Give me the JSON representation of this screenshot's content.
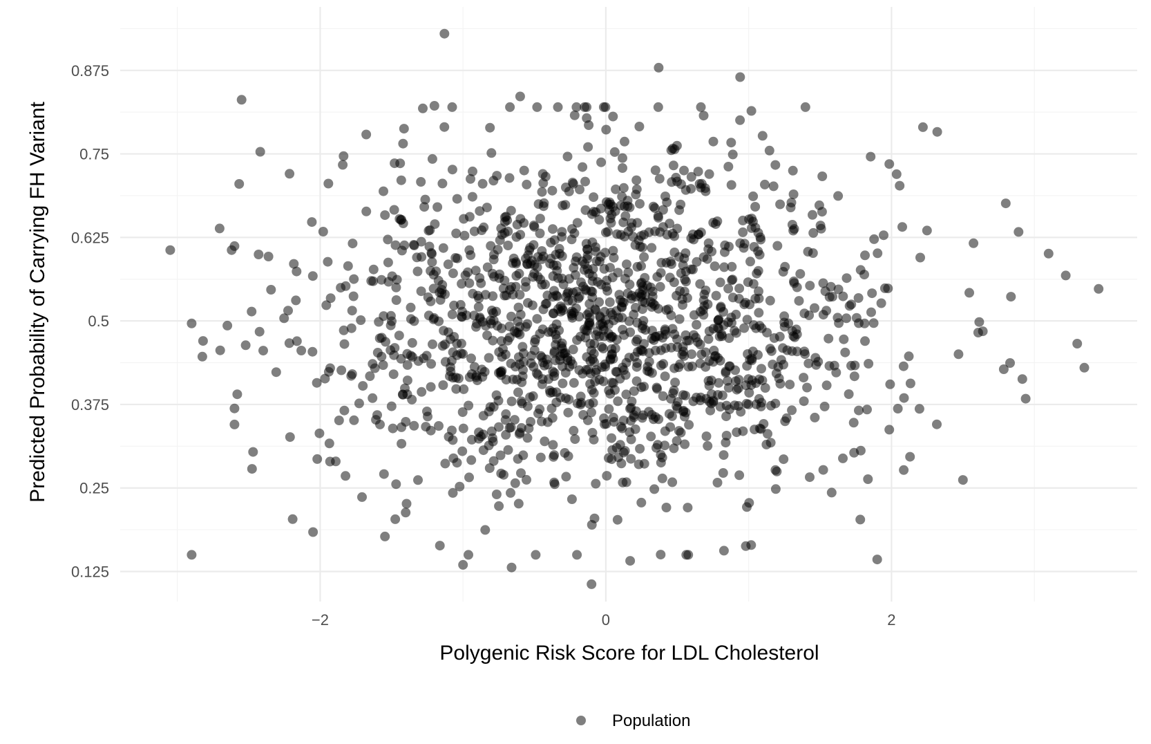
{
  "chart_data": {
    "type": "scatter",
    "title": "",
    "xlabel": "Polygenic Risk Score for LDL Cholesterol",
    "ylabel": "Predicted Probability of Carrying FH Variant",
    "xlim": [
      -3.4,
      3.72
    ],
    "ylim": [
      0.08,
      0.97
    ],
    "x_ticks": [
      -2,
      0,
      2
    ],
    "x_tick_labels": [
      "−2",
      "0",
      "2"
    ],
    "y_ticks": [
      0.125,
      0.25,
      0.375,
      0.5,
      0.625,
      0.75,
      0.875
    ],
    "y_tick_labels": [
      "0.125",
      "0.25",
      "0.375",
      "0.5",
      "0.625",
      "0.75",
      "0.875"
    ],
    "grid": true,
    "legend": {
      "placement": "bottom",
      "entries": [
        "Population"
      ]
    },
    "point_color": "#000000",
    "point_opacity": 0.5,
    "series": [
      {
        "name": "Population",
        "n_points": 1500,
        "x_distribution": {
          "mean": 0.0,
          "sd": 1.0
        },
        "y_distribution": {
          "mean": 0.5,
          "sd": 0.13
        },
        "notable_points": [
          [
            -3.05,
            0.606
          ],
          [
            3.45,
            0.548
          ],
          [
            3.22,
            0.568
          ],
          [
            3.3,
            0.466
          ],
          [
            3.35,
            0.43
          ],
          [
            -1.13,
            0.93
          ],
          [
            0.37,
            0.879
          ],
          [
            0.94,
            0.865
          ],
          [
            -0.1,
            0.106
          ],
          [
            -2.55,
            0.831
          ],
          [
            -2.6,
            0.612
          ],
          [
            -2.62,
            0.606
          ],
          [
            -2.65,
            0.493
          ],
          [
            -2.82,
            0.47
          ],
          [
            -2.7,
            0.456
          ],
          [
            -2.6,
            0.369
          ],
          [
            -2.6,
            0.345
          ],
          [
            -2.47,
            0.304
          ],
          [
            -2.05,
            0.184
          ],
          [
            -1.0,
            0.135
          ],
          [
            -0.66,
            0.131
          ],
          [
            0.17,
            0.141
          ],
          [
            0.98,
            0.163
          ],
          [
            1.9,
            0.143
          ],
          [
            2.5,
            0.262
          ],
          [
            2.83,
            0.437
          ],
          [
            2.8,
            0.676
          ],
          [
            2.22,
            0.79
          ],
          [
            2.32,
            0.783
          ],
          [
            -1.2,
            0.822
          ],
          [
            -0.6,
            0.836
          ],
          [
            0.05,
            0.806
          ]
        ]
      }
    ]
  }
}
